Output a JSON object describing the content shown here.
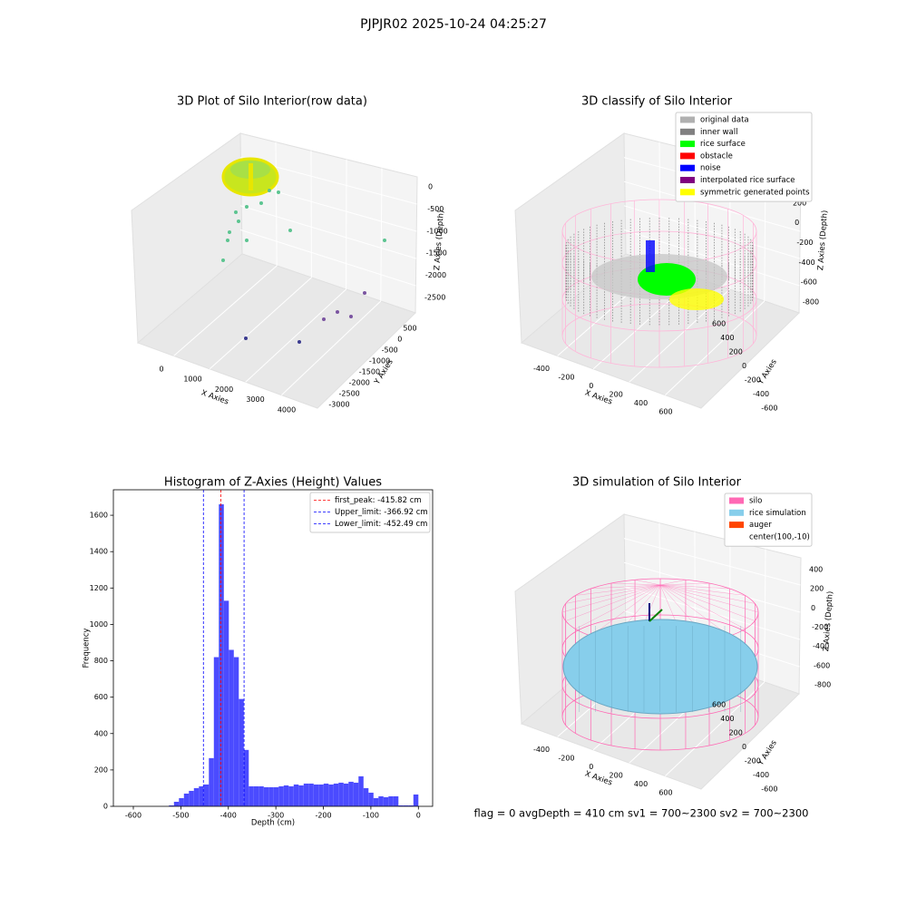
{
  "suptitle": "PJPJR02 2025-10-24 04:25:27",
  "footer": "flag = 0     avgDepth = 410 cm  sv1 = 700~2300  sv2 = 700~2300",
  "chart_data": [
    {
      "type": "scatter3d",
      "title": "3D Plot of Silo Interior(row data)",
      "xlabel": "X Axies",
      "ylabel": "Y Axies",
      "zlabel": "Z Axies (Depth)",
      "xlim": [
        -800,
        5000
      ],
      "xticks": [
        0,
        1000,
        2000,
        3000,
        4000
      ],
      "ylim": [
        -3300,
        900
      ],
      "yticks": [
        500,
        0,
        -500,
        -1000,
        -1500,
        -2000,
        -2500,
        -3000
      ],
      "zlim": [
        -2900,
        300
      ],
      "zticks": [
        0,
        -500,
        -1000,
        -1500,
        -2000,
        -2500
      ]
    },
    {
      "type": "scatter3d",
      "title": "3D classify of Silo Interior",
      "xlabel": "X Axies",
      "ylabel": "Y Axies",
      "zlabel": "Z Axies (Depth)",
      "xlim": [
        -550,
        750
      ],
      "xticks": [
        -400,
        -200,
        0,
        200,
        400,
        600
      ],
      "ylim": [
        -700,
        700
      ],
      "yticks": [
        600,
        400,
        200,
        0,
        -200,
        -400,
        -600
      ],
      "zlim": [
        -900,
        500
      ],
      "zticks": [
        400,
        200,
        0,
        -200,
        -400,
        -600,
        -800
      ],
      "legend": [
        {
          "name": "original data",
          "color": "#b0b0b0"
        },
        {
          "name": "inner wall",
          "color": "#808080"
        },
        {
          "name": "rice surface",
          "color": "#00ff00"
        },
        {
          "name": "obstacle",
          "color": "#ff0000"
        },
        {
          "name": "noise",
          "color": "#0000ff"
        },
        {
          "name": "interpolated rice surface",
          "color": "#800080"
        },
        {
          "name": "symmetric generated points",
          "color": "#ffff00"
        }
      ]
    },
    {
      "type": "histogram",
      "title": "Histogram of Z-Axies (Height) Values",
      "xlabel": "Depth (cm)",
      "ylabel": "Frequency",
      "color": "#4b4bff",
      "bins": [
        -525,
        -514.5,
        -504,
        -493.5,
        -483,
        -472.5,
        -462,
        -451.5,
        -441,
        -430.5,
        -420,
        -409.5,
        -399,
        -388.5,
        -378,
        -367.5,
        -357,
        -346.5,
        -336,
        -325.5,
        -315,
        -304.5,
        -294,
        -283.5,
        -273,
        -262.5,
        -252,
        -241.5,
        -231,
        -220.5,
        -210,
        -199.5,
        -189,
        -178.5,
        -168,
        -157.5,
        -147,
        -136.5,
        -126,
        -115.5,
        -105,
        -94.5,
        -84,
        -73.5,
        -63,
        -52.5,
        -42,
        -31.5,
        -21,
        -10.5,
        0
      ],
      "counts": [
        5,
        25,
        45,
        70,
        85,
        100,
        110,
        120,
        265,
        820,
        1660,
        1130,
        860,
        820,
        590,
        310,
        110,
        110,
        110,
        105,
        105,
        105,
        110,
        115,
        110,
        120,
        115,
        125,
        125,
        120,
        120,
        125,
        120,
        125,
        130,
        125,
        135,
        130,
        165,
        100,
        75,
        45,
        55,
        50,
        55,
        55,
        5,
        5,
        5,
        65
      ],
      "xlim": [
        -642,
        30
      ],
      "xticks": [
        -600,
        -500,
        -400,
        -300,
        -200,
        -100,
        0
      ],
      "ylim": [
        0,
        1740
      ],
      "yticks": [
        0,
        200,
        400,
        600,
        800,
        1000,
        1200,
        1400,
        1600
      ],
      "lines": [
        {
          "name": "first_peak: -415.82 cm",
          "value": -415.82,
          "color": "#ff0000"
        },
        {
          "name": "Upper_limit: -366.92 cm",
          "value": -366.92,
          "color": "#0000ff"
        },
        {
          "name": "Lower_limit: -452.49 cm",
          "value": -452.49,
          "color": "#0000ff"
        }
      ],
      "legend_loc": "upper right"
    },
    {
      "type": "surface3d",
      "title": "3D simulation of Silo Interior",
      "xlabel": "X Axies",
      "ylabel": "Y Axies",
      "zlabel": "Z Axies (Depth)",
      "xlim": [
        -550,
        750
      ],
      "xticks": [
        -400,
        -200,
        0,
        200,
        400,
        600
      ],
      "ylim": [
        -700,
        700
      ],
      "yticks": [
        600,
        400,
        200,
        0,
        -200,
        -400,
        -600
      ],
      "zlim": [
        -900,
        500
      ],
      "zticks": [
        400,
        200,
        0,
        -200,
        -400,
        -600,
        -800
      ],
      "legend": [
        {
          "name": "silo",
          "color": "#ff69b4"
        },
        {
          "name": "rice simulation",
          "color": "#87ceeb"
        },
        {
          "name": "auger",
          "color": "#ff4500"
        },
        {
          "name": "center(100,-10)"
        }
      ]
    }
  ]
}
